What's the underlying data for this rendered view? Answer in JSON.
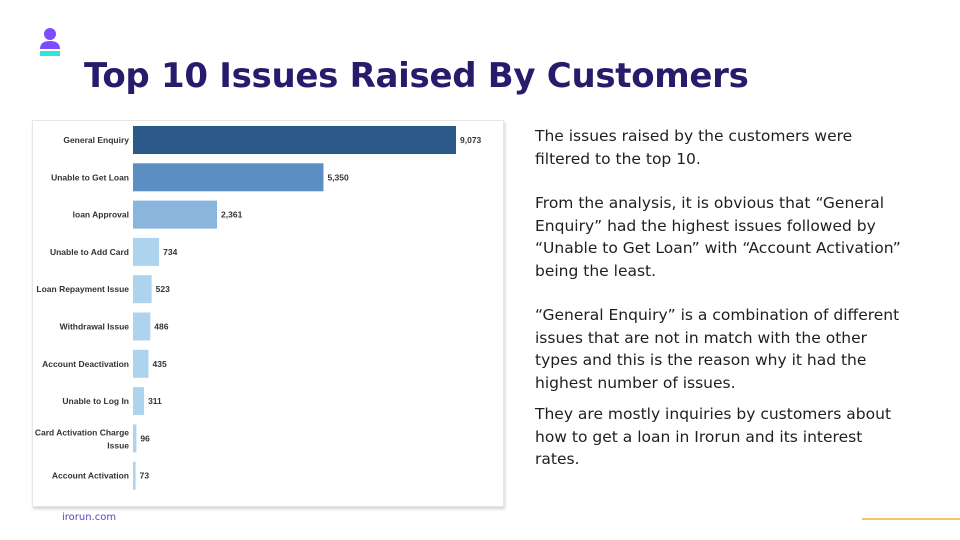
{
  "slide": {
    "title": "Top 10 Issues Raised By Customers",
    "footer": "irorun.com",
    "paragraphs": [
      "The issues raised by the customers were filtered to the top 10.",
      "From the analysis, it is obvious that “General Enquiry” had the highest issues followed by “Unable to Get Loan” with “Account Activation” being the least.",
      "“General Enquiry” is a combination of different issues that are not in match with the other types and this is the reason why it had the highest number of issues.",
      "They are mostly inquiries by customers about how to get a loan in Irorun and its interest rates."
    ]
  },
  "colors": {
    "title": "#2a1a6b",
    "logo_purple": "#7b4dff",
    "logo_teal": "#2ee6d6",
    "accent_line": "#f5c36b"
  },
  "chart_data": {
    "type": "bar",
    "orientation": "horizontal",
    "categories": [
      "General Enquiry",
      "Unable to Get Loan",
      "loan Approval",
      "Unable to Add Card",
      "Loan Repayment Issue",
      "Withdrawal Issue",
      "Account Deactivation",
      "Unable to Log In",
      "Card Activation Charge Issue",
      "Account Activation"
    ],
    "values": [
      9073,
      5350,
      2361,
      734,
      523,
      486,
      435,
      311,
      96,
      73
    ],
    "value_labels": [
      "9,073",
      "5,350",
      "2,361",
      "734",
      "523",
      "486",
      "435",
      "311",
      "96",
      "73"
    ],
    "bar_colors": [
      "#2b5a8a",
      "#5b8fc4",
      "#8ab6de",
      "#aed3ee",
      "#aed3ee",
      "#aed3ee",
      "#aed3ee",
      "#aed3ee",
      "#aed3ee",
      "#aed3ee"
    ],
    "xlim": [
      0,
      9073
    ],
    "grid": false
  }
}
